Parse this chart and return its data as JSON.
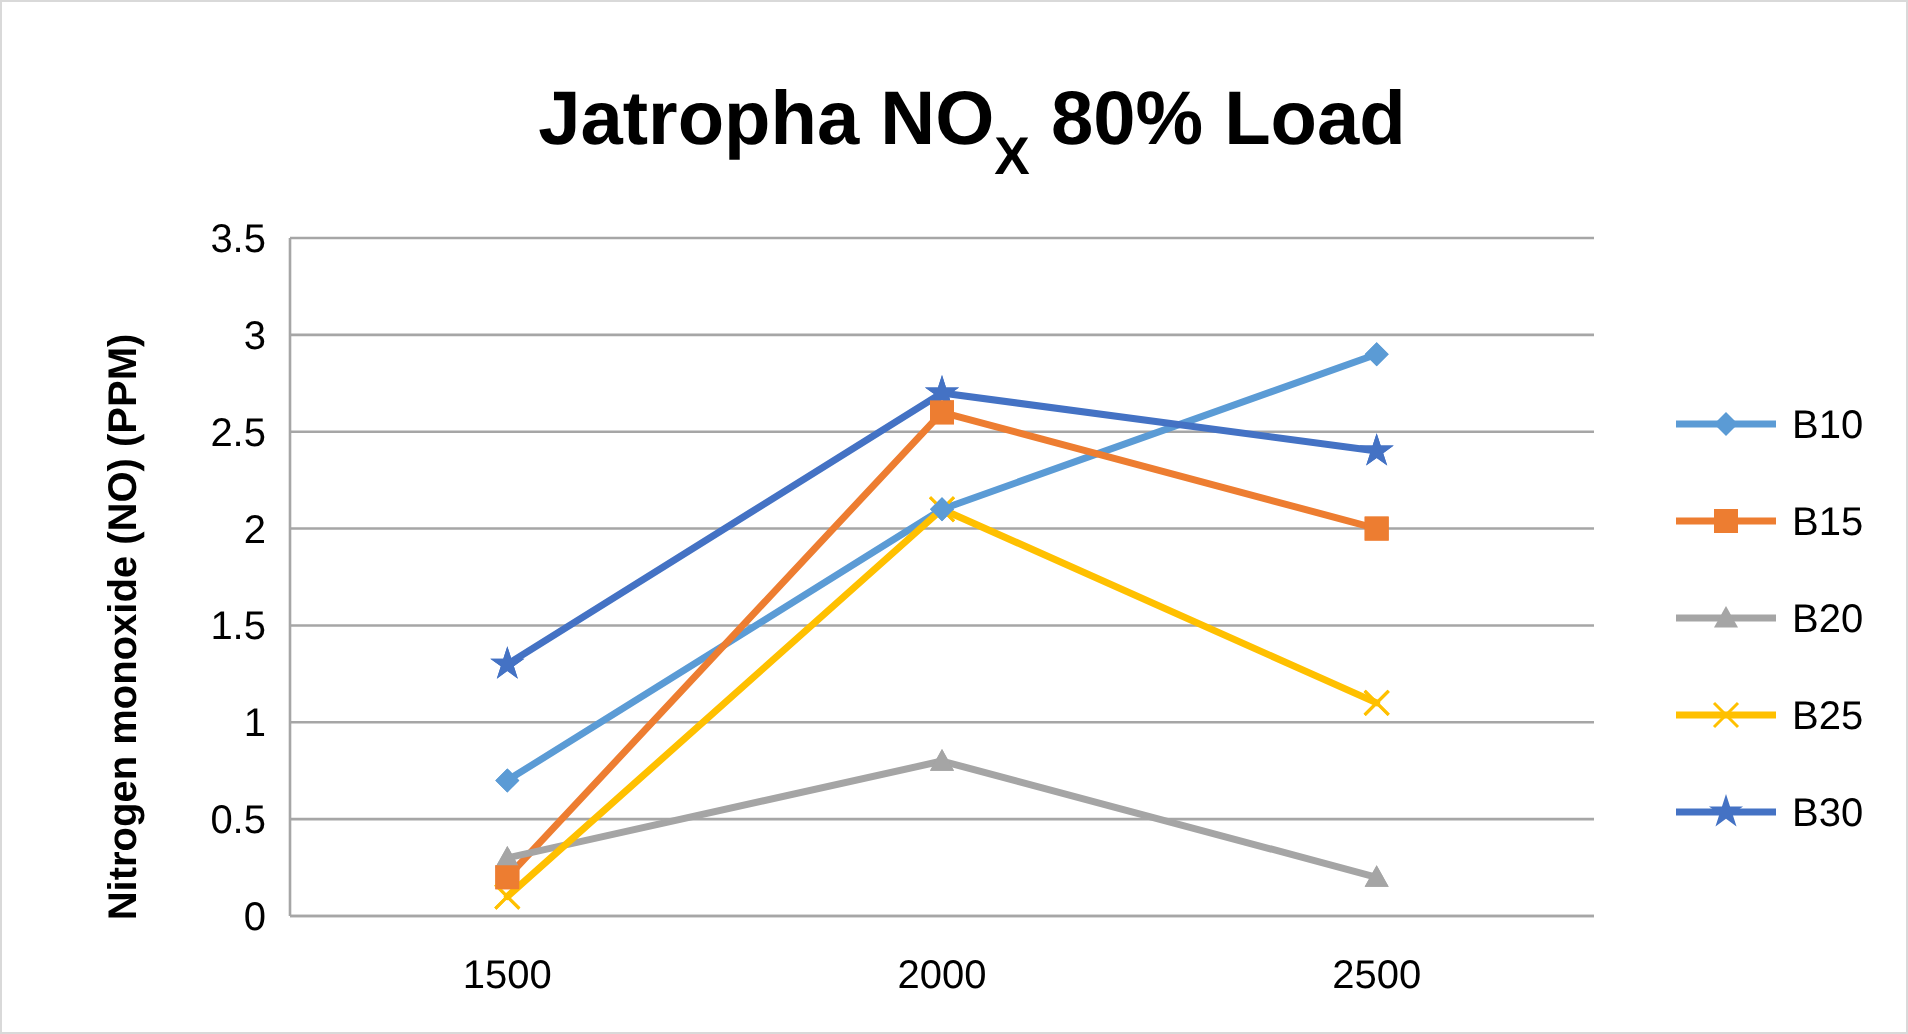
{
  "chart_data": {
    "type": "line",
    "title": "Jatropha NO$_{X}$ 80% Load",
    "ylabel": "Nitrogen monoxide (NO) (PPM)",
    "categories": [
      "1500",
      "2000",
      "2500"
    ],
    "ylim": [
      0,
      3.5
    ],
    "yticks": [
      0,
      0.5,
      1,
      1.5,
      2,
      2.5,
      3,
      3.5
    ],
    "grid": "y",
    "legend": "right",
    "series": [
      {
        "name": "B10",
        "color": "#5b9bd5",
        "marker": "diamond",
        "values": [
          0.7,
          2.1,
          2.9
        ]
      },
      {
        "name": "B15",
        "color": "#ed7d31",
        "marker": "square",
        "values": [
          0.2,
          2.6,
          2.0
        ]
      },
      {
        "name": "B20",
        "color": "#a5a5a5",
        "marker": "triangle",
        "values": [
          0.3,
          0.8,
          0.2
        ]
      },
      {
        "name": "B25",
        "color": "#ffc000",
        "marker": "cross",
        "values": [
          0.1,
          2.1,
          1.1
        ]
      },
      {
        "name": "B30",
        "color": "#4472c4",
        "marker": "star",
        "values": [
          1.3,
          2.7,
          2.4
        ]
      }
    ]
  }
}
